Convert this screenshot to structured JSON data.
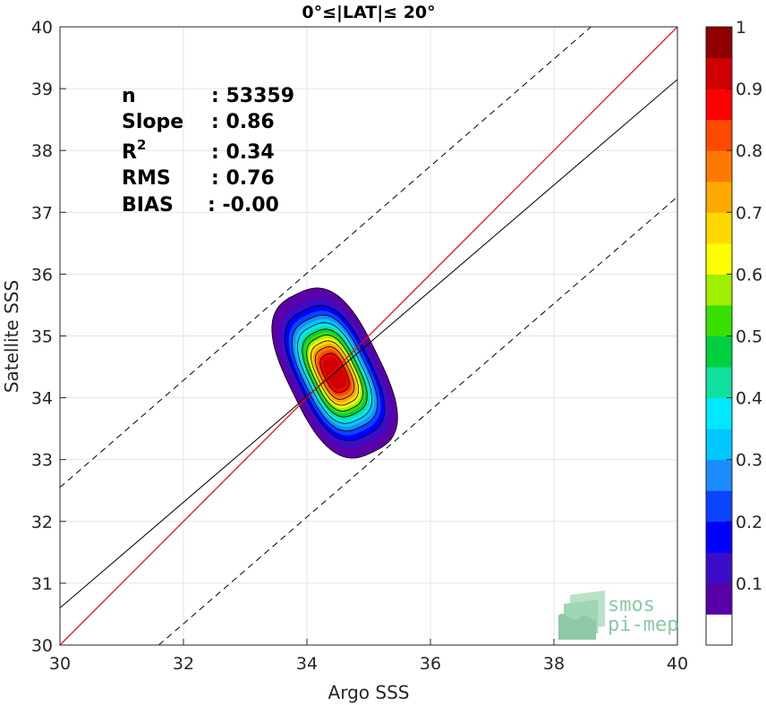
{
  "chart_data": {
    "type": "scatter",
    "title": "0°≤|LAT|≤ 20°",
    "xlabel": "Argo SSS",
    "ylabel": "Satellite SSS",
    "xlim": [
      30,
      40
    ],
    "ylim": [
      30,
      40
    ],
    "xticks": [
      30,
      32,
      34,
      36,
      38,
      40
    ],
    "yticks": [
      30,
      31,
      32,
      33,
      34,
      35,
      36,
      37,
      38,
      39,
      40
    ],
    "grid": true,
    "stats": [
      {
        "name": "n",
        "value": ": 53359"
      },
      {
        "name": "Slope",
        "value": ": 0.86"
      },
      {
        "name": "R",
        "sup": "2",
        "value": ": 0.34"
      },
      {
        "name": "RMS",
        "value": ": 0.76"
      },
      {
        "name": "BIAS",
        "value": ": -0.00"
      }
    ],
    "identity_line": {
      "x": [
        30,
        40
      ],
      "y": [
        30,
        40
      ],
      "color": "#ff0000"
    },
    "regression_line": {
      "x": [
        30,
        40
      ],
      "y": [
        30.6,
        39.15
      ],
      "color": "#000000"
    },
    "envelope_lines": [
      {
        "x": [
          30,
          38.6
        ],
        "y": [
          32.55,
          40
        ],
        "style": "dashed"
      },
      {
        "x": [
          31.6,
          40
        ],
        "y": [
          30,
          37.25
        ],
        "style": "dashed"
      }
    ],
    "density_contours": {
      "center": [
        34.45,
        34.4
      ],
      "levels": [
        0.05,
        0.1,
        0.15,
        0.2,
        0.25,
        0.3,
        0.35,
        0.4,
        0.45,
        0.5,
        0.55,
        0.6,
        0.65,
        0.7,
        0.75,
        0.8,
        0.85,
        0.9,
        0.95,
        1.0
      ],
      "outer_extent": {
        "x": [
          32.9,
          35.5
        ],
        "y": [
          32.6,
          36.15
        ]
      }
    },
    "colorbar": {
      "ticks": [
        "0.1",
        "0.2",
        "0.3",
        "0.4",
        "0.5",
        "0.6",
        "0.7",
        "0.8",
        "0.9",
        "1"
      ],
      "colors": [
        "#ffffff",
        "#5a00a8",
        "#3c0dc8",
        "#0000ff",
        "#0a44ff",
        "#1a8cff",
        "#00c8ff",
        "#00e8ff",
        "#10e0a0",
        "#00d040",
        "#38e000",
        "#a0ee00",
        "#ffff00",
        "#ffd800",
        "#ffa800",
        "#ff7800",
        "#ff4800",
        "#ff0000",
        "#d00000",
        "#900000"
      ]
    }
  },
  "logo": {
    "line1": "smos",
    "line2": "pi-mep"
  }
}
